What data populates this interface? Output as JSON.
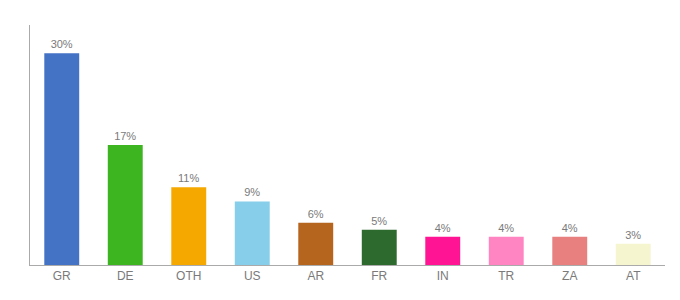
{
  "chart_data": {
    "type": "bar",
    "categories": [
      "GR",
      "DE",
      "OTH",
      "US",
      "AR",
      "FR",
      "IN",
      "TR",
      "ZA",
      "AT"
    ],
    "values": [
      30,
      17,
      11,
      9,
      6,
      5,
      4,
      4,
      4,
      3
    ],
    "value_labels": [
      "30%",
      "17%",
      "11%",
      "9%",
      "6%",
      "5%",
      "4%",
      "4%",
      "4%",
      "3%"
    ],
    "colors": [
      "#4472c4",
      "#3cb521",
      "#f5a800",
      "#87ceeb",
      "#b5651d",
      "#2d6a2d",
      "#ff1493",
      "#ff85c2",
      "#e88080",
      "#f5f5d0"
    ],
    "ylim": [
      0,
      34
    ],
    "data_labels": true,
    "tick_labels": "x",
    "grid": false
  }
}
